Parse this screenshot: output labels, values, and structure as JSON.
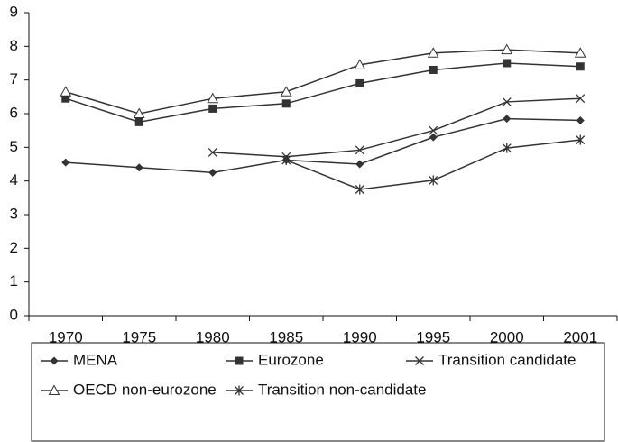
{
  "chart_data": {
    "type": "line",
    "categories": [
      "1970",
      "1975",
      "1980",
      "1985",
      "1990",
      "1995",
      "2000",
      "2001"
    ],
    "series": [
      {
        "name": "MENA",
        "color": "#333333",
        "marker": "diamond",
        "values": [
          4.55,
          4.4,
          4.25,
          4.62,
          4.5,
          5.3,
          5.85,
          5.8
        ]
      },
      {
        "name": "Eurozone",
        "color": "#333333",
        "marker": "square",
        "values": [
          6.45,
          5.75,
          6.15,
          6.3,
          6.9,
          7.3,
          7.5,
          7.4
        ]
      },
      {
        "name": "Transition candidate",
        "color": "#333333",
        "marker": "x",
        "values": [
          null,
          null,
          4.85,
          4.72,
          4.92,
          5.5,
          6.35,
          6.45
        ]
      },
      {
        "name": "OECD non-eurozone",
        "color": "#333333",
        "marker": "triangle",
        "values": [
          6.65,
          6.0,
          6.45,
          6.65,
          7.45,
          7.8,
          7.9,
          7.8
        ]
      },
      {
        "name": "Transition non-candidate",
        "color": "#333333",
        "marker": "asterisk",
        "values": [
          null,
          null,
          null,
          4.62,
          3.75,
          4.02,
          4.98,
          5.22
        ]
      }
    ],
    "ylim": [
      0,
      9
    ],
    "yticks": [
      0,
      1,
      2,
      3,
      4,
      5,
      6,
      7,
      8,
      9
    ],
    "grid": false
  }
}
